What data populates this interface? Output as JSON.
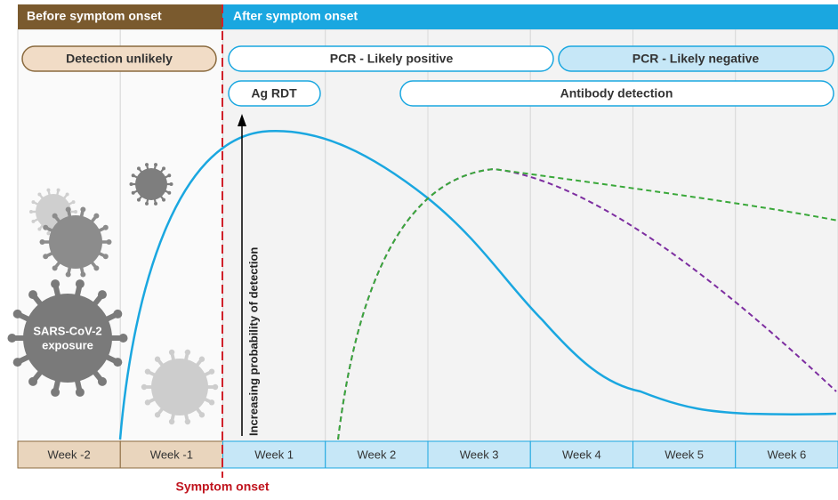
{
  "header": {
    "before": "Before symptom onset",
    "after": "After symptom onset"
  },
  "pills": {
    "detection_unlikely": "Detection unlikely",
    "pcr_positive": "PCR - Likely positive",
    "pcr_negative": "PCR - Likely negative",
    "ag_rdt": "Ag RDT",
    "antibody": "Antibody detection"
  },
  "weeks": [
    "Week -2",
    "Week -1",
    "Week 1",
    "Week 2",
    "Week 3",
    "Week 4",
    "Week 5",
    "Week 6"
  ],
  "exposure": {
    "line1": "SARS-CoV-2",
    "line2": "exposure"
  },
  "axis_label": "Increasing probability of detection",
  "symptom_onset": "Symptom onset"
}
